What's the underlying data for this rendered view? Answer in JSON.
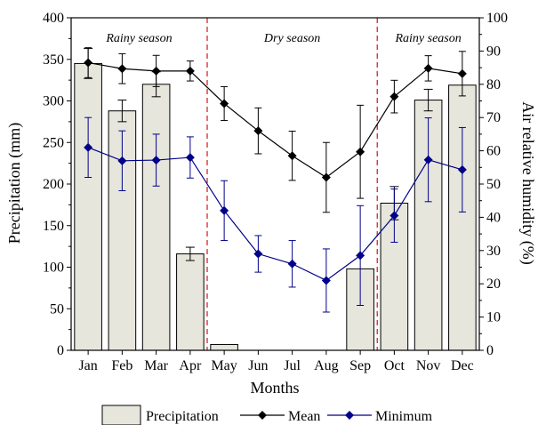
{
  "chart_data": {
    "type": "bar+line",
    "categories": [
      "Jan",
      "Feb",
      "Mar",
      "Apr",
      "May",
      "Jun",
      "Jul",
      "Aug",
      "Sep",
      "Oct",
      "Nov",
      "Dec"
    ],
    "xlabel": "Months",
    "ylabel_left": "Precipitation (mm)",
    "ylabel_right": "Air relative humidity (%)",
    "ylim_left": [
      0,
      400
    ],
    "ylim_right": [
      0,
      100
    ],
    "yticks_left": [
      "0",
      "50",
      "100",
      "150",
      "200",
      "250",
      "300",
      "350",
      "400"
    ],
    "yticks_right": [
      "0",
      "10",
      "20",
      "30",
      "40",
      "50",
      "60",
      "70",
      "80",
      "90",
      "100"
    ],
    "grid": false,
    "legend_placement": "bottom",
    "seasons": [
      {
        "label": "Rainy season",
        "from": "Jan",
        "to": "Apr"
      },
      {
        "label": "Dry season",
        "from": "May",
        "to": "Sep"
      },
      {
        "label": "Rainy season",
        "from": "Oct",
        "to": "Dec"
      }
    ],
    "season_divider_color": "#d62728",
    "bars": {
      "name": "Precipitation",
      "axis": "left",
      "color": "#e6e6dc",
      "values": [
        345,
        288,
        320,
        116,
        7,
        0,
        0,
        0,
        98,
        177,
        301,
        319
      ],
      "errors": [
        18,
        13,
        15,
        8,
        0,
        0,
        0,
        0,
        0,
        20,
        13,
        0
      ]
    },
    "series": [
      {
        "name": "Mean",
        "axis": "right",
        "color": "#000000",
        "values": [
          86.5,
          84.7,
          84.0,
          84.0,
          74.2,
          66.0,
          58.5,
          52.0,
          59.7,
          76.3,
          84.8,
          83.2
        ],
        "errors": [
          4.5,
          4.5,
          4.7,
          3.0,
          5.1,
          6.9,
          7.4,
          10.5,
          14.0,
          4.9,
          3.8,
          6.7
        ]
      },
      {
        "name": "Minimum",
        "axis": "right",
        "color": "#00008b",
        "values": [
          61.0,
          57.0,
          57.2,
          58.0,
          42.0,
          29.0,
          26.0,
          21.0,
          28.5,
          40.5,
          57.3,
          54.3
        ],
        "errors": [
          9.0,
          9.0,
          7.8,
          6.2,
          9.0,
          5.5,
          7.0,
          9.5,
          15.0,
          8.0,
          12.6,
          12.7
        ]
      }
    ]
  }
}
